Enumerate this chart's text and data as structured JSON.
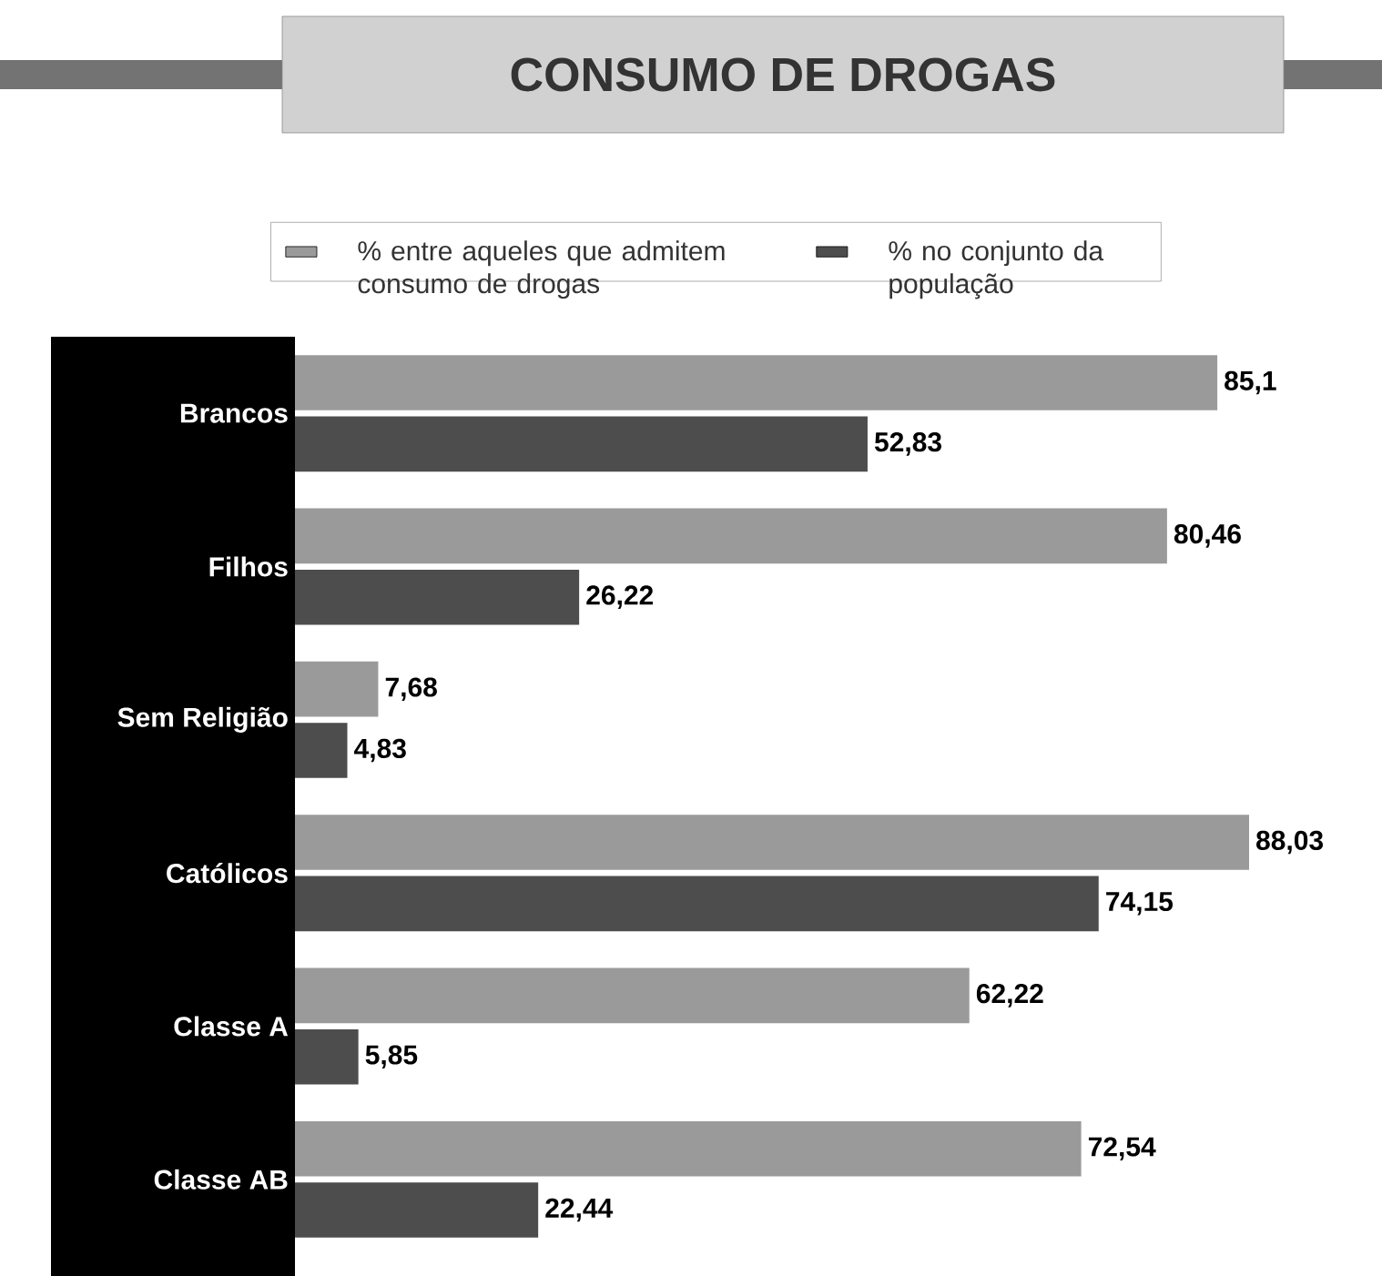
{
  "chart_data": {
    "type": "bar",
    "orientation": "horizontal",
    "title": "CONSUMO DE DROGAS",
    "categories": [
      "Brancos",
      "Filhos",
      "Sem Religião",
      "Católicos",
      "Classe A",
      "Classe AB"
    ],
    "series": [
      {
        "name": "% entre aqueles que admitem consumo de drogas",
        "color": "#9a9a9a",
        "values": [
          85.1,
          80.46,
          7.68,
          88.03,
          62.22,
          72.54
        ],
        "value_labels": [
          "85,1",
          "80,46",
          "7,68",
          "88,03",
          "62,22",
          "72,54"
        ]
      },
      {
        "name": "% no conjunto da população",
        "color": "#4d4d4d",
        "values": [
          52.83,
          26.22,
          4.83,
          74.15,
          5.85,
          22.44
        ],
        "value_labels": [
          "52,83",
          "26,22",
          "4,83",
          "74,15",
          "5,85",
          "22,44"
        ]
      }
    ],
    "legend": "top"
  }
}
